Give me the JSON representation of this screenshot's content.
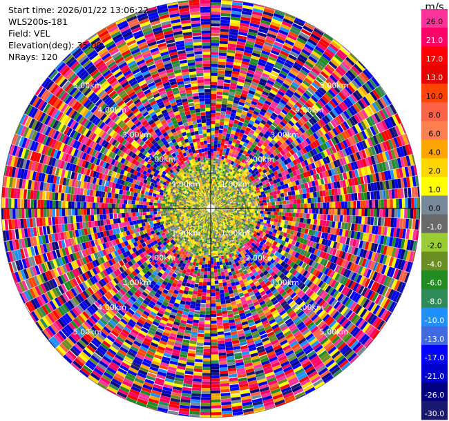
{
  "info": {
    "start_time": "Start time: 2026/01/22 13:06:22",
    "instrument": "WLS200s-181",
    "field": "Field: VEL",
    "elevation": "Elevation(deg): 35.00",
    "nrays": "NRays: 120"
  },
  "chart_data": {
    "type": "heatmap",
    "projection": "polar-ppi",
    "field": "VEL",
    "units": "m/s",
    "elevation_deg": 35.0,
    "n_rays": 120,
    "max_range_km": 6.0,
    "range_rings_km": [
      1.0,
      2.0,
      3.0,
      4.0,
      5.0,
      6.0
    ],
    "range_ring_labels": [
      "1.00km",
      "2.00km",
      "3.00km",
      "4.00km",
      "5.00km"
    ],
    "colorbar": {
      "label": "m/s",
      "vmin": -30.0,
      "vmax": 30.0,
      "ticks": [
        "26.0",
        "21.0",
        "17.0",
        "13.0",
        "10.0",
        "8.0",
        "6.0",
        "4.0",
        "2.0",
        "1.0",
        "0.0",
        "-1.0",
        "-2.0",
        "-4.0",
        "-6.0",
        "-8.0",
        "-10.0",
        "-13.0",
        "-17.0",
        "-21.0",
        "-26.0",
        "-30.0"
      ],
      "colors": [
        "#ff3399",
        "#ff0066",
        "#ff0000",
        "#e60000",
        "#ff4500",
        "#ff6347",
        "#ff7f50",
        "#ffa500",
        "#ffd700",
        "#ffff00",
        "#778899",
        "#696969",
        "#9acd32",
        "#6b8e23",
        "#228b22",
        "#2e8b57",
        "#1e90ff",
        "#4169e1",
        "#0000ff",
        "#0000cd",
        "#000080",
        "#191970"
      ]
    }
  }
}
